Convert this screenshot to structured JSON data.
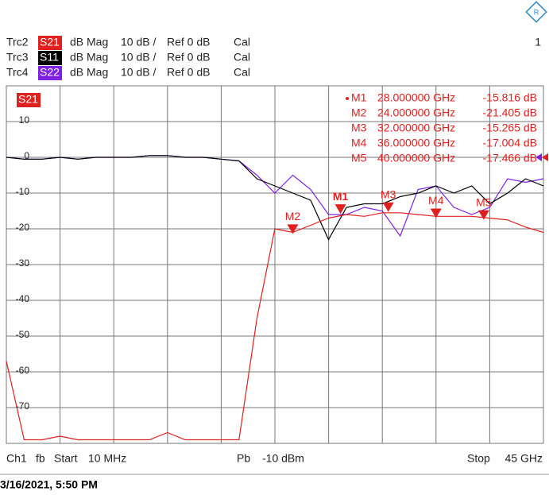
{
  "chart_data": {
    "type": "line",
    "channel_number": "1",
    "active_trace": "S21",
    "series": [
      {
        "trace": "Trc2",
        "name": "S21",
        "format": "dB Mag",
        "scale": "10 dB /",
        "ref": "Ref 0 dB",
        "cal": "Cal",
        "color": "#e0201f",
        "values": [
          -57,
          -79,
          -79,
          -78,
          -79,
          -79,
          -79,
          -79,
          -79,
          -77,
          -79,
          -79,
          -79,
          -79,
          -45,
          -20,
          -21,
          -19,
          -17,
          -16,
          -16.5,
          -15.5,
          -15.5,
          -16,
          -16.5,
          -16.5,
          -16.5,
          -17,
          -17.5,
          -19.5,
          -21
        ]
      },
      {
        "trace": "Trc3",
        "name": "S11",
        "format": "dB Mag",
        "scale": "10 dB /",
        "ref": "Ref 0 dB",
        "cal": "Cal",
        "color": "#000000",
        "values": [
          0,
          -0.5,
          -0.5,
          0,
          -0.5,
          0,
          0,
          0,
          0.5,
          0.5,
          0,
          0,
          -0.5,
          -1,
          -6,
          -8,
          -10,
          -12,
          -23,
          -14,
          -13,
          -13,
          -11,
          -10,
          -8,
          -10,
          -8,
          -13,
          -10,
          -6,
          -8
        ]
      },
      {
        "trace": "Trc4",
        "name": "S22",
        "format": "dB Mag",
        "scale": "10 dB /",
        "ref": "Ref 0 dB",
        "cal": "Cal",
        "color": "#8020e0",
        "values": [
          0,
          -0.5,
          -0.5,
          0,
          -0.5,
          0,
          0,
          0,
          0.5,
          0.5,
          0,
          0,
          -0.5,
          -1,
          -5,
          -10,
          -5,
          -9,
          -16,
          -16,
          -14,
          -15,
          -22,
          -9,
          -8,
          -14,
          -16,
          -14,
          -6,
          -7,
          -6
        ]
      }
    ],
    "x": [
      0.01,
      1.5,
      3,
      4.5,
      6,
      7.5,
      9,
      10.5,
      12,
      13.5,
      15,
      16.5,
      18,
      19.5,
      21,
      22.5,
      24,
      25.5,
      27,
      28.5,
      30,
      31.5,
      33,
      34.5,
      36,
      37.5,
      39,
      40.5,
      42,
      43.5,
      45
    ],
    "xlim": [
      0.01,
      45
    ],
    "ylim": [
      -80,
      20
    ],
    "yticks": [
      10,
      0,
      -10,
      -20,
      -30,
      -40,
      -50,
      -60,
      -70
    ],
    "grid": true,
    "markers": [
      {
        "name": "M1",
        "x": 28,
        "x_label": "28.000000 GHz",
        "value": -15.816,
        "value_label": "-15.816 dB"
      },
      {
        "name": "M2",
        "x": 24,
        "x_label": "24.000000 GHz",
        "value": -21.405,
        "value_label": "-21.405 dB"
      },
      {
        "name": "M3",
        "x": 32,
        "x_label": "32.000000 GHz",
        "value": -15.265,
        "value_label": "-15.265 dB"
      },
      {
        "name": "M4",
        "x": 36,
        "x_label": "36.000000 GHz",
        "value": -17.004,
        "value_label": "-17.004 dB"
      },
      {
        "name": "M5",
        "x": 40,
        "x_label": "40.000000 GHz",
        "value": -17.466,
        "value_label": "-17.466 dB"
      }
    ],
    "footer": {
      "channel": "Ch1",
      "mode": "fb",
      "start_label": "Start",
      "start": "10 MHz",
      "power_label": "Pb",
      "power": "-10 dBm",
      "stop_label": "Stop",
      "stop": "45 GHz"
    },
    "timestamp": "3/16/2021, 5:50 PM"
  }
}
